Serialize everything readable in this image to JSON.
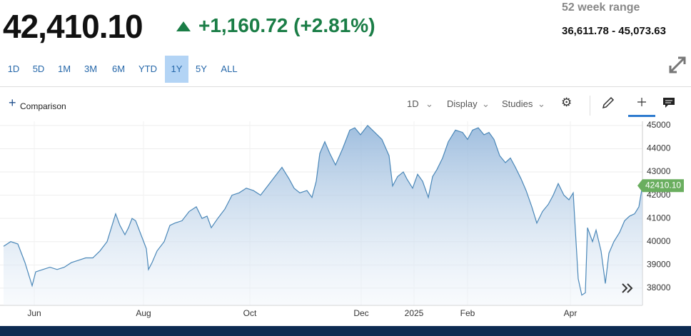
{
  "header": {
    "price": "42,410.10",
    "change": "+1,160.72 (+2.81%)",
    "range_label": "52 week range",
    "range_value": "36,611.78 - 45,073.63"
  },
  "ranges": [
    "1D",
    "5D",
    "1M",
    "3M",
    "6M",
    "YTD",
    "1Y",
    "5Y",
    "ALL"
  ],
  "selected_range": "1Y",
  "toolbar": {
    "comparison": "Comparison",
    "interval": "1D",
    "display": "Display",
    "studies": "Studies"
  },
  "chart_data": {
    "type": "line",
    "color": "#4a87b8",
    "grid": true,
    "last_label": "42410.10",
    "x": [
      0,
      10,
      20,
      30,
      40,
      45,
      55,
      65,
      75,
      85,
      95,
      105,
      115,
      125,
      135,
      145,
      153,
      157,
      163,
      170,
      175,
      180,
      185,
      190,
      195,
      200,
      203,
      208,
      215,
      225,
      233,
      240,
      250,
      260,
      270,
      278,
      285,
      291,
      300,
      310,
      320,
      330,
      340,
      350,
      360,
      370,
      380,
      390,
      400,
      407,
      415,
      425,
      432,
      438,
      443,
      450,
      457,
      465,
      475,
      485,
      492,
      500,
      510,
      520,
      530,
      540,
      545,
      552,
      560,
      565,
      573,
      580,
      587,
      595,
      601,
      607,
      615,
      623,
      633,
      643,
      650,
      657,
      665,
      673,
      680,
      687,
      695,
      703,
      710,
      717,
      725,
      732,
      740,
      747,
      755,
      763,
      770,
      777,
      785,
      792,
      798,
      801,
      805,
      810,
      815,
      818,
      825,
      830,
      837,
      843,
      848,
      855,
      863,
      870,
      877,
      884,
      890,
      895
    ],
    "values": [
      39800,
      40000,
      39900,
      39100,
      38100,
      38700,
      38800,
      38900,
      38800,
      38900,
      39100,
      39200,
      39300,
      39300,
      39600,
      40000,
      40800,
      41200,
      40700,
      40300,
      40600,
      41000,
      40900,
      40500,
      40100,
      39700,
      38800,
      39100,
      39600,
      40000,
      40700,
      40800,
      40900,
      41300,
      41500,
      41000,
      41100,
      40600,
      41000,
      41400,
      42000,
      42100,
      42300,
      42200,
      42000,
      42400,
      42800,
      43200,
      42700,
      42300,
      42100,
      42200,
      41900,
      42600,
      43800,
      44300,
      43800,
      43300,
      44000,
      44800,
      44900,
      44600,
      45000,
      44700,
      44400,
      43700,
      42400,
      42800,
      43000,
      42700,
      42300,
      42900,
      42600,
      41900,
      42800,
      43100,
      43600,
      44300,
      44800,
      44700,
      44400,
      44800,
      44900,
      44600,
      44700,
      44400,
      43700,
      43400,
      43600,
      43200,
      42700,
      42200,
      41500,
      40800,
      41300,
      41600,
      42000,
      42500,
      42000,
      41800,
      42100,
      40500,
      38400,
      37700,
      37800,
      40600,
      40000,
      40500,
      39600,
      38200,
      39500,
      40000,
      40400,
      40900,
      41100,
      41200,
      41500,
      42410.1
    ],
    "xlim": [
      0,
      895
    ],
    "xticks": [
      {
        "value": 43,
        "label": "Jun"
      },
      {
        "value": 196,
        "label": "Aug"
      },
      {
        "value": 345,
        "label": "Oct"
      },
      {
        "value": 501,
        "label": "Dec"
      },
      {
        "value": 575,
        "label": "2025"
      },
      {
        "value": 650,
        "label": "Feb"
      },
      {
        "value": 794,
        "label": "Apr"
      }
    ],
    "ylim": [
      37260,
      45180
    ],
    "yticks": [
      38000,
      39000,
      40000,
      41000,
      42000,
      43000,
      44000,
      45000
    ]
  }
}
